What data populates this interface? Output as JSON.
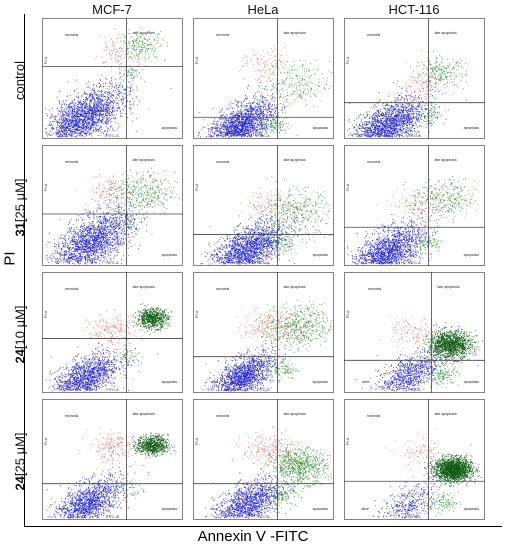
{
  "figure": {
    "x_axis_title": "Annexin V -FITC",
    "y_axis_title": "PI"
  },
  "columns": [
    {
      "label": "MCF-7"
    },
    {
      "label": "HeLa"
    },
    {
      "label": "HCT-116"
    }
  ],
  "rows": [
    {
      "bold": "",
      "rest": "control"
    },
    {
      "bold": "31",
      "rest": " [25 µM]"
    },
    {
      "bold": "24",
      "rest": " [10 µM]"
    },
    {
      "bold": "24",
      "rest": " [25 µM]"
    }
  ],
  "panel_text": {
    "quadrant_labels": [
      "necrosis",
      "late apoptosis",
      "alive",
      "apoptosis"
    ],
    "x_channel": "FITC-A",
    "y_channel": "PI-A"
  },
  "colors": {
    "alive": "#1f1fd6",
    "necrosis": "#e06060",
    "late_apoptosis": "#2f8f2f",
    "late_apoptosis_dense": "#0e5a12",
    "gate_line": "#444444",
    "frame": "#666666"
  },
  "chart_data": {
    "type": "scatter",
    "title": "",
    "xlabel": "Annexin V -FITC",
    "ylabel": "PI",
    "grid": false,
    "panels": [
      {
        "column": "MCF-7",
        "row": "control",
        "x_gate": 0.6,
        "y_gate": 0.6,
        "populations": [
          {
            "quadrant": "alive",
            "share": 0.86,
            "cx": 0.3,
            "cy": 0.18,
            "spread": 0.13
          },
          {
            "quadrant": "necrosis",
            "share": 0.04,
            "cx": 0.52,
            "cy": 0.7,
            "spread": 0.07
          },
          {
            "quadrant": "late apoptosis",
            "share": 0.08,
            "cx": 0.7,
            "cy": 0.78,
            "spread": 0.08
          },
          {
            "quadrant": "apoptosis",
            "share": 0.02,
            "cx": 0.62,
            "cy": 0.55,
            "spread": 0.04
          }
        ]
      },
      {
        "column": "HeLa",
        "row": "control",
        "x_gate": 0.6,
        "y_gate": 0.18,
        "populations": [
          {
            "quadrant": "alive",
            "share": 0.82,
            "cx": 0.33,
            "cy": 0.1,
            "spread": 0.11
          },
          {
            "quadrant": "necrosis",
            "share": 0.04,
            "cx": 0.52,
            "cy": 0.62,
            "spread": 0.08
          },
          {
            "quadrant": "late apoptosis",
            "share": 0.1,
            "cx": 0.7,
            "cy": 0.45,
            "spread": 0.12
          },
          {
            "quadrant": "apoptosis",
            "share": 0.04,
            "cx": 0.58,
            "cy": 0.12,
            "spread": 0.05
          }
        ]
      },
      {
        "column": "HCT-116",
        "row": "control",
        "x_gate": 0.6,
        "y_gate": 0.3,
        "populations": [
          {
            "quadrant": "alive",
            "share": 0.83,
            "cx": 0.3,
            "cy": 0.1,
            "spread": 0.12
          },
          {
            "quadrant": "necrosis",
            "share": 0.05,
            "cx": 0.55,
            "cy": 0.45,
            "spread": 0.08
          },
          {
            "quadrant": "late apoptosis",
            "share": 0.09,
            "cx": 0.68,
            "cy": 0.55,
            "spread": 0.08
          },
          {
            "quadrant": "apoptosis",
            "share": 0.03,
            "cx": 0.6,
            "cy": 0.2,
            "spread": 0.05
          }
        ]
      },
      {
        "column": "MCF-7",
        "row": "31 [25 µM]",
        "x_gate": 0.6,
        "y_gate": 0.43,
        "populations": [
          {
            "quadrant": "alive",
            "share": 0.78,
            "cx": 0.35,
            "cy": 0.2,
            "spread": 0.13
          },
          {
            "quadrant": "necrosis",
            "share": 0.05,
            "cx": 0.5,
            "cy": 0.62,
            "spread": 0.08
          },
          {
            "quadrant": "late apoptosis",
            "share": 0.15,
            "cx": 0.7,
            "cy": 0.6,
            "spread": 0.11
          },
          {
            "quadrant": "apoptosis",
            "share": 0.02,
            "cx": 0.62,
            "cy": 0.35,
            "spread": 0.05
          }
        ]
      },
      {
        "column": "HeLa",
        "row": "31 [25 µM]",
        "x_gate": 0.6,
        "y_gate": 0.26,
        "populations": [
          {
            "quadrant": "alive",
            "share": 0.78,
            "cx": 0.38,
            "cy": 0.13,
            "spread": 0.12
          },
          {
            "quadrant": "necrosis",
            "share": 0.05,
            "cx": 0.55,
            "cy": 0.5,
            "spread": 0.08
          },
          {
            "quadrant": "late apoptosis",
            "share": 0.14,
            "cx": 0.72,
            "cy": 0.45,
            "spread": 0.12
          },
          {
            "quadrant": "apoptosis",
            "share": 0.03,
            "cx": 0.62,
            "cy": 0.18,
            "spread": 0.05
          }
        ]
      },
      {
        "column": "HCT-116",
        "row": "31 [25 µM]",
        "x_gate": 0.6,
        "y_gate": 0.32,
        "populations": [
          {
            "quadrant": "alive",
            "share": 0.8,
            "cx": 0.3,
            "cy": 0.1,
            "spread": 0.12
          },
          {
            "quadrant": "necrosis",
            "share": 0.05,
            "cx": 0.52,
            "cy": 0.5,
            "spread": 0.09
          },
          {
            "quadrant": "late apoptosis",
            "share": 0.12,
            "cx": 0.7,
            "cy": 0.55,
            "spread": 0.1
          },
          {
            "quadrant": "apoptosis",
            "share": 0.03,
            "cx": 0.6,
            "cy": 0.2,
            "spread": 0.05
          }
        ]
      },
      {
        "column": "MCF-7",
        "row": "24 [10 µM]",
        "x_gate": 0.6,
        "y_gate": 0.45,
        "populations": [
          {
            "quadrant": "alive",
            "share": 0.62,
            "cx": 0.3,
            "cy": 0.12,
            "spread": 0.11
          },
          {
            "quadrant": "necrosis",
            "share": 0.08,
            "cx": 0.5,
            "cy": 0.52,
            "spread": 0.08
          },
          {
            "quadrant": "late apoptosis",
            "share": 0.28,
            "cx": 0.78,
            "cy": 0.62,
            "spread": 0.05
          },
          {
            "quadrant": "apoptosis",
            "share": 0.02,
            "cx": 0.62,
            "cy": 0.3,
            "spread": 0.05
          }
        ]
      },
      {
        "column": "HeLa",
        "row": "24 [10 µM]",
        "x_gate": 0.6,
        "y_gate": 0.3,
        "populations": [
          {
            "quadrant": "alive",
            "share": 0.66,
            "cx": 0.35,
            "cy": 0.13,
            "spread": 0.1
          },
          {
            "quadrant": "necrosis",
            "share": 0.1,
            "cx": 0.55,
            "cy": 0.55,
            "spread": 0.09
          },
          {
            "quadrant": "late apoptosis",
            "share": 0.2,
            "cx": 0.75,
            "cy": 0.55,
            "spread": 0.11
          },
          {
            "quadrant": "apoptosis",
            "share": 0.04,
            "cx": 0.63,
            "cy": 0.2,
            "spread": 0.05
          }
        ]
      },
      {
        "column": "HCT-116",
        "row": "24 [10 µM]",
        "x_gate": 0.62,
        "y_gate": 0.27,
        "populations": [
          {
            "quadrant": "alive",
            "share": 0.35,
            "cx": 0.45,
            "cy": 0.15,
            "spread": 0.1
          },
          {
            "quadrant": "necrosis",
            "share": 0.05,
            "cx": 0.5,
            "cy": 0.5,
            "spread": 0.08
          },
          {
            "quadrant": "late apoptosis",
            "share": 0.55,
            "cx": 0.75,
            "cy": 0.4,
            "spread": 0.07
          },
          {
            "quadrant": "apoptosis",
            "share": 0.05,
            "cx": 0.7,
            "cy": 0.15,
            "spread": 0.05
          }
        ]
      },
      {
        "column": "MCF-7",
        "row": "24 [25 µM]",
        "x_gate": 0.6,
        "y_gate": 0.3,
        "populations": [
          {
            "quadrant": "alive",
            "share": 0.6,
            "cx": 0.32,
            "cy": 0.13,
            "spread": 0.11
          },
          {
            "quadrant": "necrosis",
            "share": 0.08,
            "cx": 0.5,
            "cy": 0.6,
            "spread": 0.08
          },
          {
            "quadrant": "late apoptosis",
            "share": 0.3,
            "cx": 0.78,
            "cy": 0.62,
            "spread": 0.05
          },
          {
            "quadrant": "apoptosis",
            "share": 0.02,
            "cx": 0.62,
            "cy": 0.25,
            "spread": 0.05
          }
        ]
      },
      {
        "column": "HeLa",
        "row": "24 [25 µM]",
        "x_gate": 0.6,
        "y_gate": 0.3,
        "populations": [
          {
            "quadrant": "alive",
            "share": 0.58,
            "cx": 0.38,
            "cy": 0.13,
            "spread": 0.11
          },
          {
            "quadrant": "necrosis",
            "share": 0.1,
            "cx": 0.55,
            "cy": 0.58,
            "spread": 0.09
          },
          {
            "quadrant": "late apoptosis",
            "share": 0.28,
            "cx": 0.75,
            "cy": 0.45,
            "spread": 0.09
          },
          {
            "quadrant": "apoptosis",
            "share": 0.04,
            "cx": 0.63,
            "cy": 0.2,
            "spread": 0.05
          }
        ]
      },
      {
        "column": "HCT-116",
        "row": "24 [25 µM]",
        "x_gate": 0.6,
        "y_gate": 0.32,
        "populations": [
          {
            "quadrant": "alive",
            "share": 0.18,
            "cx": 0.45,
            "cy": 0.12,
            "spread": 0.1
          },
          {
            "quadrant": "necrosis",
            "share": 0.04,
            "cx": 0.55,
            "cy": 0.55,
            "spread": 0.08
          },
          {
            "quadrant": "late apoptosis",
            "share": 0.74,
            "cx": 0.77,
            "cy": 0.42,
            "spread": 0.06
          },
          {
            "quadrant": "apoptosis",
            "share": 0.04,
            "cx": 0.7,
            "cy": 0.15,
            "spread": 0.05
          }
        ]
      }
    ]
  }
}
